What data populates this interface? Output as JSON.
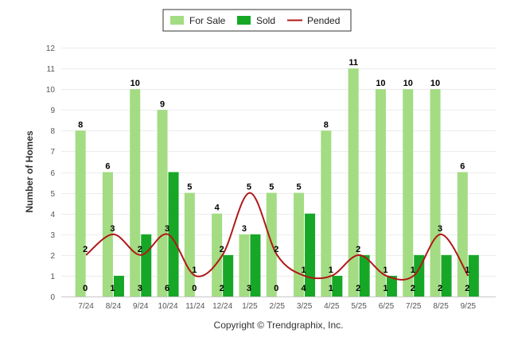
{
  "chart_data": {
    "type": "bar",
    "title": "",
    "xlabel": "",
    "ylabel": "Number of Homes",
    "ylim": [
      0,
      12
    ],
    "yticks": [
      0,
      1,
      2,
      3,
      4,
      5,
      6,
      7,
      8,
      9,
      10,
      11,
      12
    ],
    "grid": true,
    "legend_position": "top-center",
    "categories": [
      "7/24",
      "8/24",
      "9/24",
      "10/24",
      "11/24",
      "12/24",
      "1/25",
      "2/25",
      "3/25",
      "4/25",
      "5/25",
      "6/25",
      "7/25",
      "8/25",
      "9/25"
    ],
    "series": [
      {
        "name": "For Sale",
        "kind": "bar",
        "color": "#a3dc82",
        "values": [
          8,
          6,
          10,
          9,
          5,
          4,
          3,
          5,
          5,
          8,
          11,
          10,
          10,
          10,
          6
        ]
      },
      {
        "name": "Sold",
        "kind": "bar",
        "color": "#17a727",
        "values": [
          0,
          1,
          3,
          6,
          0,
          2,
          3,
          0,
          4,
          1,
          2,
          1,
          2,
          2,
          2
        ]
      },
      {
        "name": "Pended",
        "kind": "line",
        "color": "#b01818",
        "values": [
          2,
          3,
          2,
          3,
          1,
          2,
          5,
          2,
          1,
          1,
          2,
          1,
          1,
          3,
          1
        ]
      }
    ]
  },
  "footer": {
    "credit": "Copyright © Trendgraphix, Inc."
  }
}
